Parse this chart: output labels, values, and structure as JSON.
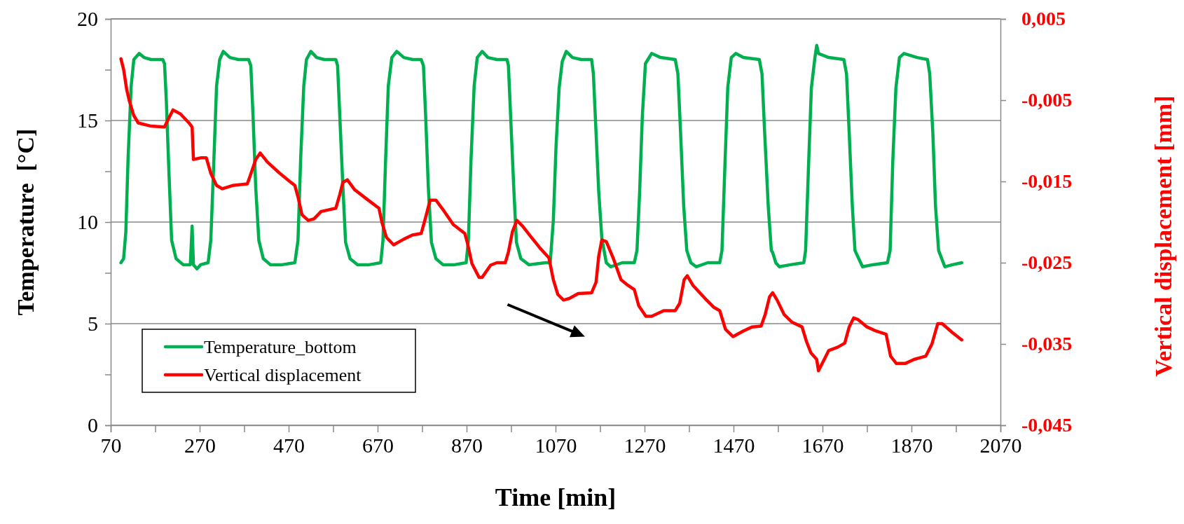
{
  "chart_data": {
    "type": "line",
    "xlabel": "Time [min]",
    "ylabel": "Temperature  [°C]",
    "y2label": "Vertical displacement [mm]",
    "xlim": [
      70,
      2070
    ],
    "xticks": [
      70,
      {
        "value": 170,
        "label": null
      },
      270,
      {
        "value": 370,
        "label": null
      },
      470,
      {
        "value": 570,
        "label": null
      },
      670,
      {
        "value": 770,
        "label": null
      },
      870,
      {
        "value": 970,
        "label": null
      },
      1070,
      {
        "value": 1170,
        "label": null
      },
      1270,
      {
        "value": 1370,
        "label": null
      },
      1470,
      {
        "value": 1570,
        "label": null
      },
      1670,
      {
        "value": 1770,
        "label": null
      },
      1870,
      {
        "value": 1970,
        "label": null
      },
      2070
    ],
    "ylim": [
      0,
      20
    ],
    "yticks": [
      0,
      {
        "value": 2.5,
        "label": null
      },
      5,
      {
        "value": 7.5,
        "label": null
      },
      10,
      {
        "value": 12.5,
        "label": null
      },
      15,
      {
        "value": 17.5,
        "label": null
      },
      20
    ],
    "y2lim": [
      -0.045,
      0.005
    ],
    "y2ticks": [
      {
        "value": -0.045,
        "label": "-0,045"
      },
      {
        "value": -0.035,
        "label": "-0,035"
      },
      {
        "value": -0.025,
        "label": "-0,025"
      },
      {
        "value": -0.015,
        "label": "-0,015"
      },
      {
        "value": -0.005,
        "label": "-0,005"
      },
      {
        "value": 0.005,
        "label": "0,005"
      }
    ],
    "grid": "y",
    "legend": "bottom left",
    "marker": "none",
    "line_style": "solid",
    "series": [
      {
        "name": "Temperature_bottom",
        "color": "#00b050",
        "x": [
          93,
          99,
          104,
          109,
          116,
          122,
          134,
          145,
          161,
          187,
          191,
          195,
          201,
          207,
          217,
          233,
          249,
          253,
          256,
          264,
          272,
          289,
          295,
          302,
          308,
          315,
          323,
          338,
          357,
          380,
          385,
          390,
          396,
          403,
          413,
          429,
          455,
          484,
          491,
          497,
          504,
          510,
          520,
          533,
          550,
          576,
          580,
          585,
          592,
          598,
          608,
          625,
          651,
          677,
          682,
          688,
          694,
          702,
          713,
          729,
          749,
          768,
          773,
          778,
          784,
          791,
          801,
          817,
          843,
          869,
          874,
          880,
          887,
          894,
          905,
          918,
          938,
          961,
          964,
          969,
          976,
          982,
          992,
          1010,
          1048,
          1058,
          1065,
          1071,
          1078,
          1085,
          1094,
          1108,
          1128,
          1151,
          1155,
          1161,
          1167,
          1174,
          1184,
          1194,
          1220,
          1247,
          1253,
          1259,
          1265,
          1272,
          1286,
          1306,
          1339,
          1345,
          1351,
          1358,
          1365,
          1374,
          1386,
          1412,
          1439,
          1444,
          1451,
          1457,
          1465,
          1475,
          1492,
          1528,
          1534,
          1540,
          1548,
          1555,
          1558,
          1565,
          1573,
          1598,
          1628,
          1632,
          1639,
          1645,
          1653,
          1657,
          1661,
          1684,
          1718,
          1724,
          1730,
          1737,
          1743,
          1760,
          1783,
          1816,
          1822,
          1828,
          1835,
          1843,
          1853,
          1883,
          1906,
          1911,
          1918,
          1924,
          1931,
          1945,
          1962,
          1983
        ],
        "values": [
          8.0,
          8.2,
          9.5,
          13.1,
          16.7,
          18.0,
          18.3,
          18.1,
          18.0,
          18.0,
          17.8,
          16.0,
          12.4,
          9.1,
          8.2,
          7.9,
          7.9,
          9.8,
          7.9,
          7.7,
          7.9,
          8.0,
          9.1,
          13.1,
          16.7,
          18.0,
          18.4,
          18.1,
          18.0,
          18.0,
          17.7,
          15.2,
          11.7,
          9.1,
          8.2,
          7.9,
          7.9,
          8.0,
          9.1,
          13.1,
          16.7,
          18.0,
          18.4,
          18.1,
          18.0,
          18.0,
          17.7,
          15.2,
          11.7,
          9.0,
          8.2,
          7.9,
          7.9,
          8.0,
          9.1,
          13.1,
          16.7,
          18.1,
          18.4,
          18.1,
          18.0,
          18.0,
          17.7,
          15.2,
          11.7,
          9.0,
          8.2,
          7.9,
          7.9,
          8.0,
          9.1,
          13.1,
          16.7,
          18.1,
          18.4,
          18.1,
          18.0,
          18.0,
          17.7,
          15.2,
          11.7,
          9.0,
          8.2,
          7.9,
          8.0,
          8.0,
          10.1,
          13.7,
          16.6,
          17.9,
          18.4,
          18.1,
          18.0,
          18.0,
          17.3,
          14.4,
          11.5,
          9.2,
          8.0,
          7.8,
          8.0,
          8.0,
          8.6,
          11.5,
          15.2,
          17.8,
          18.3,
          18.1,
          18.0,
          17.3,
          14.4,
          10.8,
          8.6,
          8.0,
          7.8,
          8.0,
          8.0,
          8.6,
          13.0,
          16.6,
          18.1,
          18.3,
          18.1,
          18.0,
          17.3,
          14.4,
          10.8,
          8.6,
          8.5,
          8.0,
          7.8,
          7.9,
          8.0,
          8.6,
          13.0,
          16.6,
          18.1,
          18.7,
          18.3,
          18.1,
          18.0,
          17.3,
          14.4,
          10.8,
          8.6,
          7.8,
          7.9,
          8.0,
          8.6,
          13.0,
          16.6,
          18.1,
          18.3,
          18.1,
          18.0,
          17.3,
          14.4,
          10.8,
          8.6,
          7.8,
          7.9,
          8.0
        ]
      },
      {
        "name": "Vertical displacement",
        "color": "#ff0000",
        "axis": "y2",
        "x": [
          93,
          99,
          106,
          112,
          122,
          132,
          161,
          191,
          197,
          210,
          227,
          246,
          253,
          256,
          272,
          285,
          295,
          308,
          321,
          344,
          377,
          383,
          396,
          406,
          422,
          448,
          468,
          484,
          491,
          500,
          514,
          527,
          543,
          559,
          576,
          585,
          592,
          602,
          618,
          644,
          673,
          680,
          690,
          706,
          729,
          748,
          768,
          778,
          788,
          801,
          820,
          840,
          866,
          872,
          882,
          898,
          905,
          924,
          938,
          957,
          964,
          973,
          983,
          996,
          1016,
          1035,
          1055,
          1065,
          1075,
          1088,
          1101,
          1121,
          1151,
          1161,
          1167,
          1174,
          1184,
          1200,
          1217,
          1233,
          1247,
          1257,
          1273,
          1286,
          1313,
          1339,
          1349,
          1359,
          1366,
          1379,
          1406,
          1426,
          1439,
          1452,
          1469,
          1492,
          1512,
          1532,
          1541,
          1551,
          1558,
          1568,
          1584,
          1601,
          1624,
          1634,
          1644,
          1657,
          1661,
          1674,
          1684,
          1704,
          1720,
          1730,
          1740,
          1750,
          1770,
          1790,
          1813,
          1823,
          1836,
          1856,
          1876,
          1902,
          1916,
          1929,
          1939,
          1962,
          1983
        ],
        "values": [
          0.0001,
          -0.0012,
          -0.0037,
          -0.0051,
          -0.0069,
          -0.0078,
          -0.0082,
          -0.0083,
          -0.0076,
          -0.0062,
          -0.0067,
          -0.0078,
          -0.0083,
          -0.0123,
          -0.0121,
          -0.0121,
          -0.014,
          -0.0155,
          -0.0159,
          -0.0155,
          -0.0153,
          -0.0144,
          -0.0123,
          -0.0115,
          -0.0126,
          -0.0139,
          -0.0148,
          -0.0155,
          -0.0169,
          -0.0191,
          -0.0198,
          -0.0196,
          -0.0187,
          -0.0185,
          -0.0183,
          -0.0166,
          -0.0151,
          -0.0148,
          -0.016,
          -0.0171,
          -0.0183,
          -0.0201,
          -0.0219,
          -0.0228,
          -0.0221,
          -0.0216,
          -0.0214,
          -0.0194,
          -0.0173,
          -0.0173,
          -0.0187,
          -0.0203,
          -0.0214,
          -0.0226,
          -0.0251,
          -0.0268,
          -0.0268,
          -0.0253,
          -0.025,
          -0.025,
          -0.0237,
          -0.0212,
          -0.0198,
          -0.0205,
          -0.0219,
          -0.0232,
          -0.0244,
          -0.0271,
          -0.0289,
          -0.0296,
          -0.0294,
          -0.0288,
          -0.0287,
          -0.0274,
          -0.0242,
          -0.0222,
          -0.0224,
          -0.0245,
          -0.0271,
          -0.0278,
          -0.0283,
          -0.0303,
          -0.0316,
          -0.0316,
          -0.0309,
          -0.0309,
          -0.03,
          -0.0271,
          -0.0266,
          -0.0278,
          -0.0294,
          -0.0305,
          -0.0309,
          -0.0332,
          -0.0341,
          -0.0334,
          -0.0329,
          -0.0328,
          -0.0314,
          -0.0292,
          -0.0287,
          -0.0296,
          -0.0314,
          -0.0323,
          -0.0329,
          -0.0347,
          -0.0361,
          -0.0369,
          -0.0383,
          -0.0369,
          -0.0358,
          -0.0354,
          -0.0349,
          -0.0329,
          -0.0318,
          -0.032,
          -0.0329,
          -0.0334,
          -0.0338,
          -0.0365,
          -0.0374,
          -0.0374,
          -0.0369,
          -0.0365,
          -0.035,
          -0.0325,
          -0.0325,
          -0.0336,
          -0.0345
        ]
      }
    ]
  }
}
